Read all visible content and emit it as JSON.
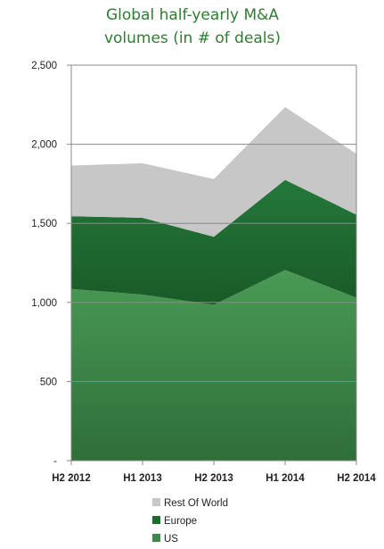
{
  "chart_data": {
    "type": "area",
    "stacked": true,
    "title_lines": [
      "Global half-yearly M&A",
      "volumes (in # of deals)"
    ],
    "categories": [
      "H2 2012",
      "H1 2013",
      "H2 2013",
      "H1 2014",
      "H2 2014"
    ],
    "y_ticks": [
      {
        "value": 0,
        "label": "-"
      },
      {
        "value": 500,
        "label": "500"
      },
      {
        "value": 1000,
        "label": "1,000"
      },
      {
        "value": 1500,
        "label": "1,500"
      },
      {
        "value": 2000,
        "label": "2,000"
      },
      {
        "value": 2500,
        "label": "2,500"
      }
    ],
    "ylim": [
      0,
      2500
    ],
    "grid": true,
    "legend_placement": "bottom-center",
    "series": [
      {
        "name": "US",
        "values": [
          1085,
          1050,
          985,
          1205,
          1030
        ],
        "color": "#3f8a4a"
      },
      {
        "name": "Europe",
        "values": [
          460,
          485,
          430,
          570,
          525
        ],
        "color": "#1e6b30"
      },
      {
        "name": "Rest Of World",
        "values": [
          320,
          345,
          365,
          460,
          385
        ],
        "color": "#c7c7c7"
      }
    ],
    "legend_order": [
      "Rest Of World",
      "Europe",
      "US"
    ]
  }
}
